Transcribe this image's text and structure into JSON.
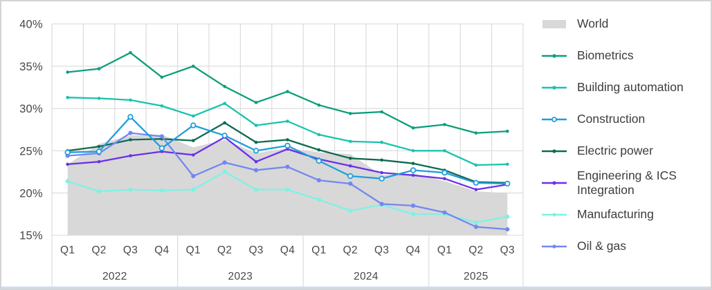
{
  "chart_data": {
    "type": "area+line",
    "title": "",
    "legend_position": "right",
    "grid": true,
    "y_axis": {
      "min": 15,
      "max": 40,
      "ticks": [
        {
          "v": 40,
          "label": "40%"
        },
        {
          "v": 35,
          "label": "35%"
        },
        {
          "v": 30,
          "label": "30%"
        },
        {
          "v": 25,
          "label": "25%"
        },
        {
          "v": 20,
          "label": "20%"
        },
        {
          "v": 15,
          "label": "15%"
        }
      ]
    },
    "x_axis": {
      "groups": [
        {
          "label": "2022",
          "quarters": [
            "Q1",
            "Q2",
            "Q3",
            "Q4"
          ]
        },
        {
          "label": "2023",
          "quarters": [
            "Q1",
            "Q2",
            "Q3",
            "Q4"
          ]
        },
        {
          "label": "2024",
          "quarters": [
            "Q1",
            "Q2",
            "Q3",
            "Q4"
          ]
        },
        {
          "label": "2025",
          "quarters": [
            "Q1",
            "Q2",
            "Q3"
          ]
        }
      ]
    },
    "categories": [
      "2022 Q1",
      "2022 Q2",
      "2022 Q3",
      "2022 Q4",
      "2023 Q1",
      "2023 Q2",
      "2023 Q3",
      "2023 Q4",
      "2024 Q1",
      "2024 Q2",
      "2024 Q3",
      "2024 Q4",
      "2025 Q1",
      "2025 Q2",
      "2025 Q3"
    ],
    "unit": "%",
    "series": [
      {
        "name": "World",
        "type": "area",
        "color": "#d8d8d8",
        "marker": "none",
        "values": [
          23.4,
          25.8,
          26.8,
          26.9,
          25.4,
          26.3,
          24.7,
          25.3,
          24.8,
          24.6,
          22.1,
          22.3,
          21.4,
          20.2,
          20.0
        ]
      },
      {
        "name": "Biometrics",
        "type": "line",
        "color": "#0c9e7b",
        "marker": "dot-small",
        "values": [
          34.3,
          34.7,
          36.6,
          33.7,
          35.0,
          32.6,
          30.7,
          32.0,
          30.4,
          29.4,
          29.6,
          27.7,
          28.1,
          27.1,
          27.3
        ]
      },
      {
        "name": "Building automation",
        "type": "line",
        "color": "#17c3ae",
        "marker": "dot-small",
        "values": [
          31.3,
          31.2,
          31.0,
          30.3,
          29.1,
          30.6,
          28.0,
          28.5,
          26.9,
          26.1,
          26.0,
          25.0,
          25.0,
          23.3,
          23.4
        ]
      },
      {
        "name": "Construction",
        "type": "line",
        "color": "#1e9ede",
        "marker": "open-circle",
        "values": [
          24.8,
          24.9,
          29.0,
          25.3,
          28.0,
          26.8,
          25.0,
          25.6,
          23.8,
          22.0,
          21.7,
          22.7,
          22.4,
          21.2,
          21.1
        ]
      },
      {
        "name": "Electric power",
        "type": "line",
        "color": "#0e6a51",
        "marker": "dot-small",
        "values": [
          25.0,
          25.5,
          26.3,
          26.4,
          26.2,
          28.3,
          26.0,
          26.3,
          25.1,
          24.1,
          23.9,
          23.5,
          22.7,
          21.3,
          21.2
        ]
      },
      {
        "name": "Engineering & ICS Integration",
        "type": "line",
        "color": "#6a30e8",
        "marker": "dot-small",
        "values": [
          23.4,
          23.7,
          24.4,
          24.9,
          24.5,
          26.6,
          23.7,
          25.2,
          24.0,
          23.2,
          22.4,
          22.1,
          21.7,
          20.4,
          21.0
        ]
      },
      {
        "name": "Manufacturing",
        "type": "line",
        "color": "#7ef2e2",
        "marker": "dot",
        "values": [
          21.4,
          20.2,
          20.4,
          20.3,
          20.4,
          22.5,
          20.4,
          20.4,
          19.2,
          17.9,
          18.6,
          17.5,
          17.5,
          16.5,
          17.2
        ]
      },
      {
        "name": "Oil & gas",
        "type": "line",
        "color": "#7288f0",
        "marker": "dot",
        "values": [
          24.4,
          24.7,
          27.1,
          26.7,
          22.0,
          23.6,
          22.7,
          23.1,
          21.5,
          21.1,
          18.7,
          18.5,
          17.7,
          16.0,
          15.7
        ]
      }
    ],
    "colors": {
      "grid": "#dcdcdc",
      "axis_text": "#484848",
      "legend_text": "#3d3d3d",
      "frame_border": "#d4d4d4",
      "bottom_strip": "#cfdcf3"
    }
  }
}
